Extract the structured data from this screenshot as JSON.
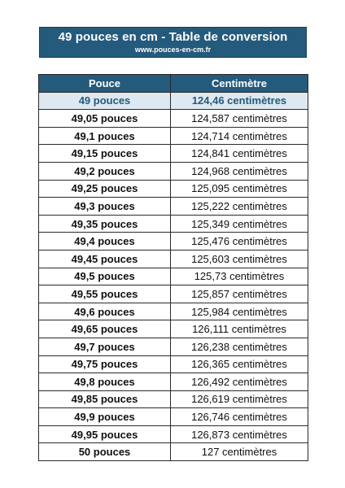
{
  "header": {
    "title": "49 pouces en cm - Table de conversion",
    "website": "www.pouces-en-cm.fr"
  },
  "table": {
    "columns": [
      "Pouce",
      "Centimètre"
    ],
    "rows": [
      {
        "inches": "49 pouces",
        "cm": "124,46 centimètres"
      },
      {
        "inches": "49,05 pouces",
        "cm": "124,587 centimètres"
      },
      {
        "inches": "49,1 pouces",
        "cm": "124,714 centimètres"
      },
      {
        "inches": "49,15 pouces",
        "cm": "124,841 centimètres"
      },
      {
        "inches": "49,2 pouces",
        "cm": "124,968 centimètres"
      },
      {
        "inches": "49,25 pouces",
        "cm": "125,095 centimètres"
      },
      {
        "inches": "49,3 pouces",
        "cm": "125,222 centimètres"
      },
      {
        "inches": "49,35 pouces",
        "cm": "125,349 centimètres"
      },
      {
        "inches": "49,4 pouces",
        "cm": "125,476 centimètres"
      },
      {
        "inches": "49,45 pouces",
        "cm": "125,603 centimètres"
      },
      {
        "inches": "49,5 pouces",
        "cm": "125,73 centimètres"
      },
      {
        "inches": "49,55 pouces",
        "cm": "125,857 centimètres"
      },
      {
        "inches": "49,6 pouces",
        "cm": "125,984 centimètres"
      },
      {
        "inches": "49,65 pouces",
        "cm": "126,111 centimètres"
      },
      {
        "inches": "49,7 pouces",
        "cm": "126,238 centimètres"
      },
      {
        "inches": "49,75 pouces",
        "cm": "126,365 centimètres"
      },
      {
        "inches": "49,8 pouces",
        "cm": "126,492 centimètres"
      },
      {
        "inches": "49,85 pouces",
        "cm": "126,619 centimètres"
      },
      {
        "inches": "49,9 pouces",
        "cm": "126,746 centimètres"
      },
      {
        "inches": "49,95 pouces",
        "cm": "126,873 centimètres"
      },
      {
        "inches": "50 pouces",
        "cm": "127 centimètres"
      }
    ]
  },
  "colors": {
    "header_bg": "#245a7b",
    "highlight_bg": "#dde8f0",
    "highlight_text": "#245a7b"
  }
}
